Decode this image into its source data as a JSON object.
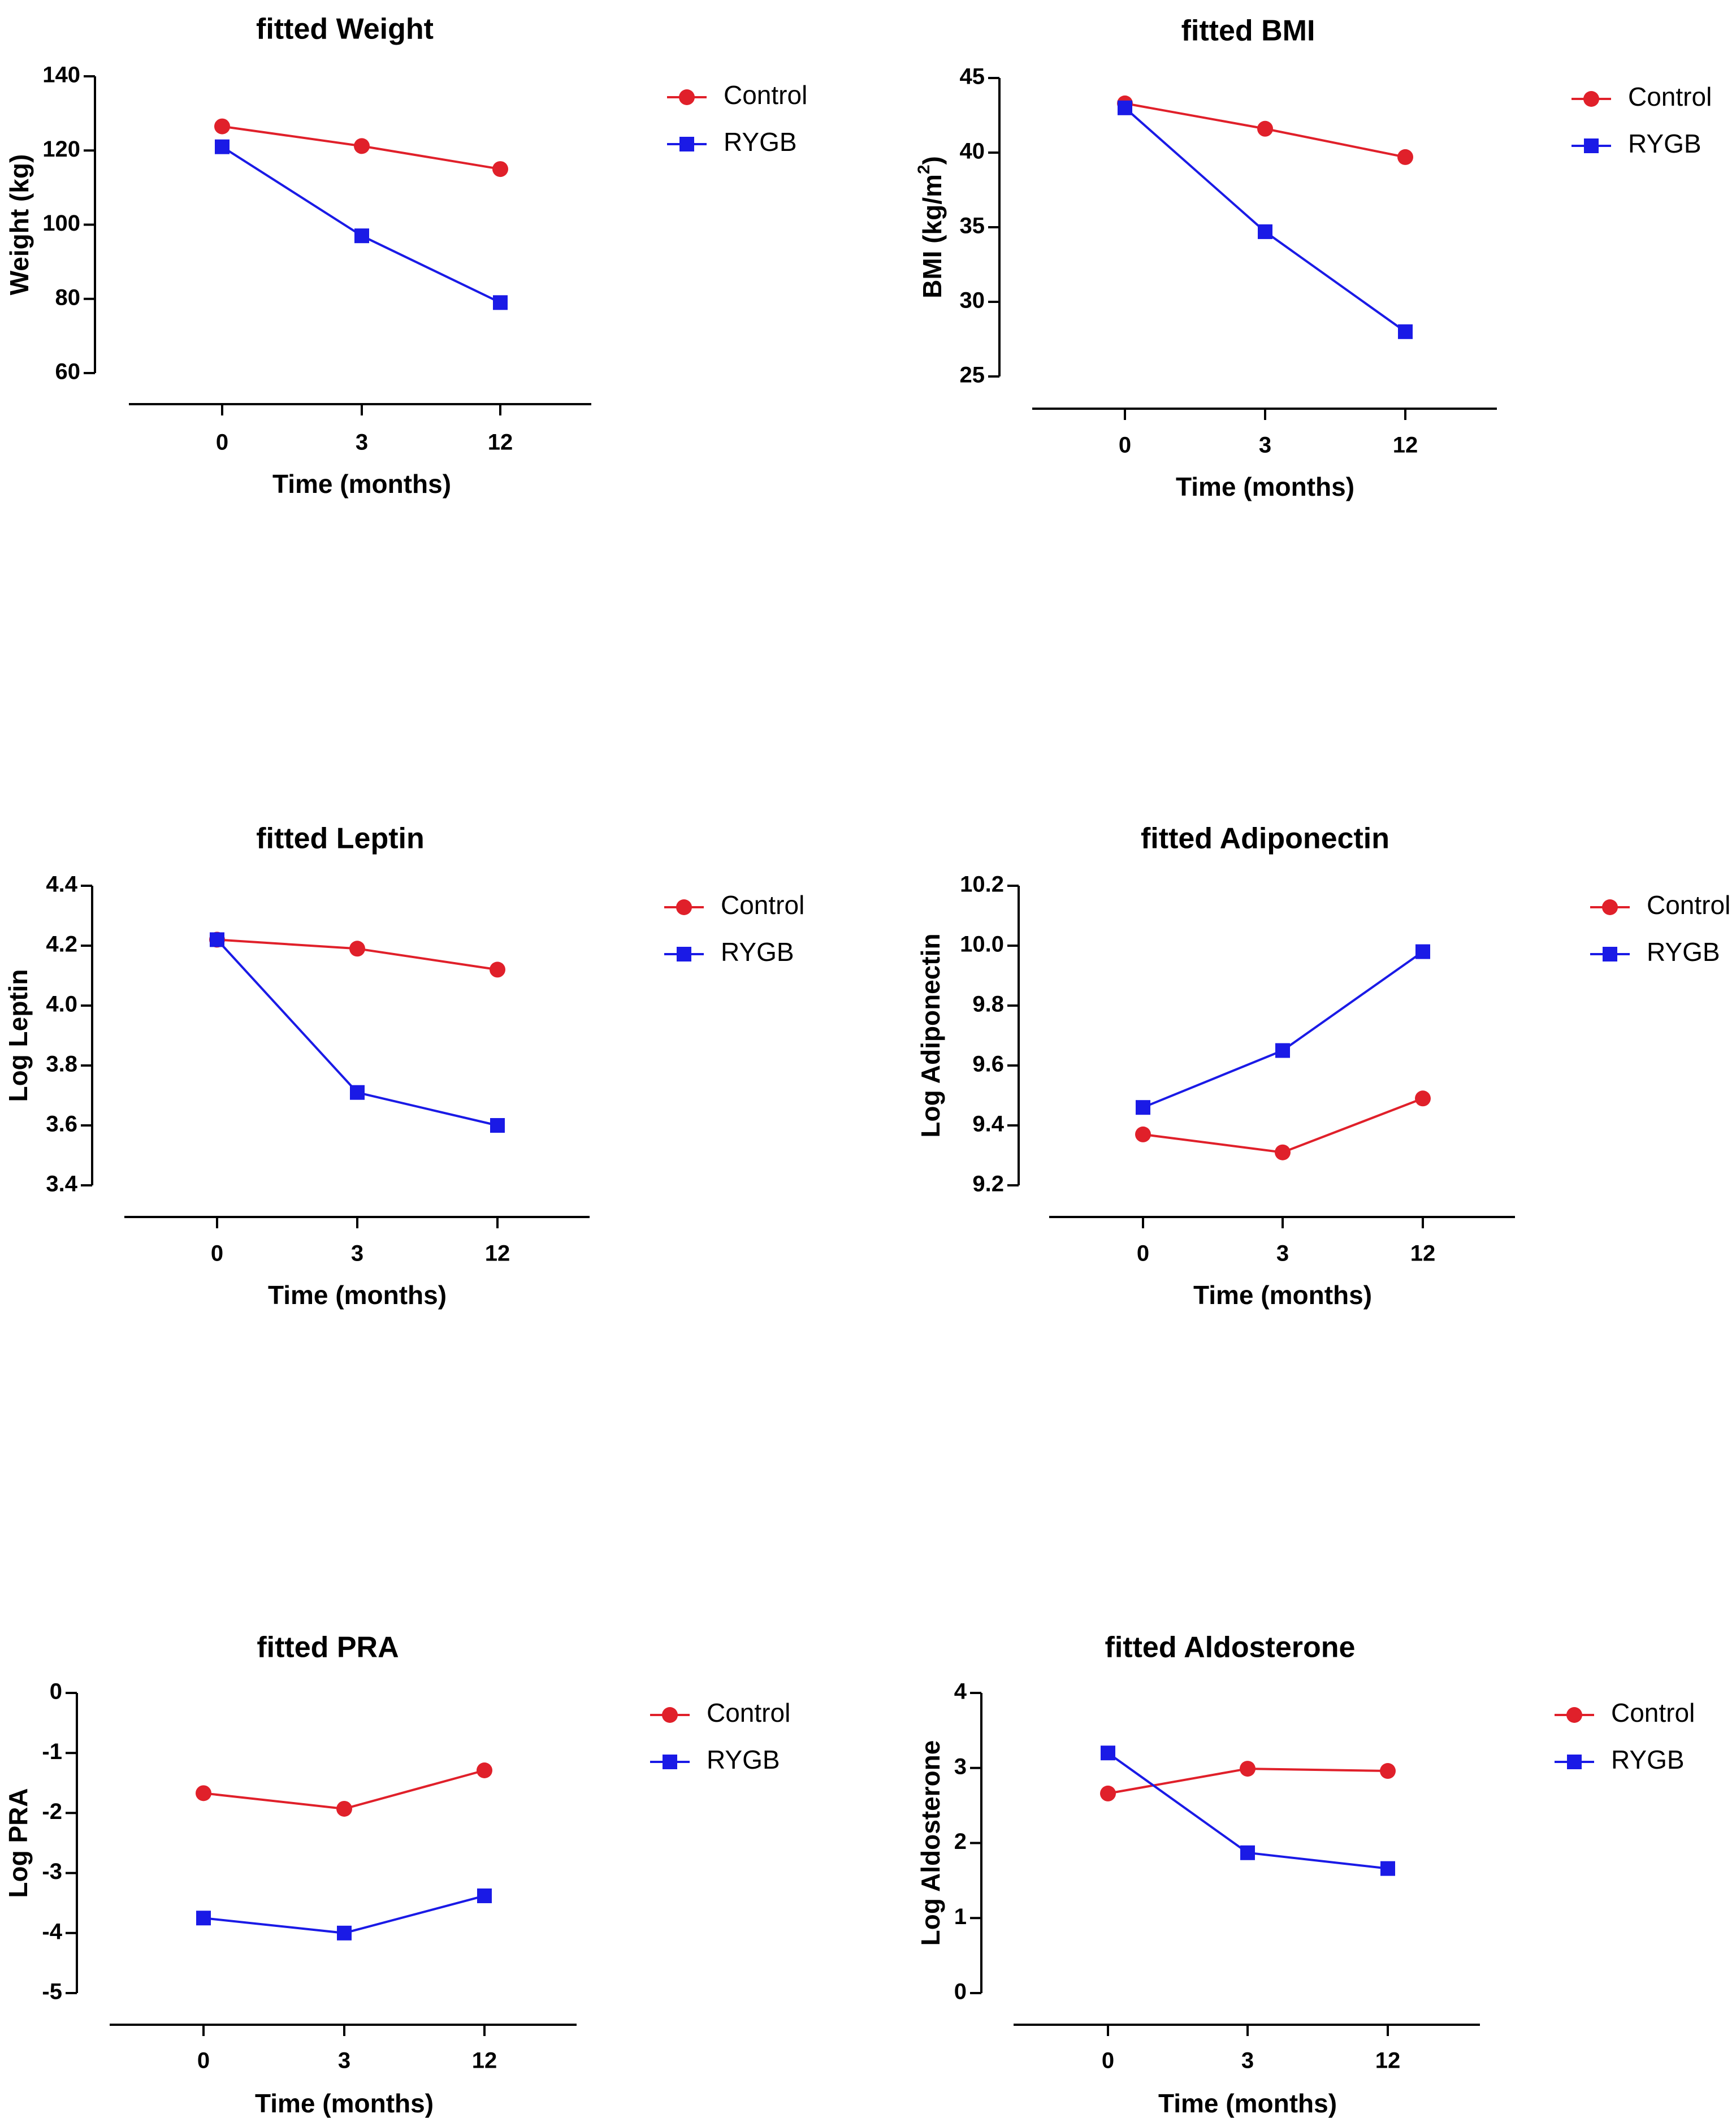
{
  "figure": {
    "colors": {
      "Control": "#e0202a",
      "RYGB": "#1a1ae6"
    },
    "markers": {
      "Control": "circle",
      "RYGB": "square"
    }
  },
  "chart_data": [
    {
      "type": "line",
      "title": "fitted Weight",
      "xlabel": "Time (months)",
      "ylabel": "Weight (kg)",
      "ylabel_sup": "",
      "ylabel_after": "",
      "categories": [
        "0",
        "3",
        "12"
      ],
      "ylim": [
        60,
        140
      ],
      "yticks": [
        60,
        80,
        100,
        120,
        140
      ],
      "yticklabels": [
        "60",
        "80",
        "100",
        "120",
        "140"
      ],
      "series": [
        {
          "name": "Control",
          "values": [
            126.5,
            121.2,
            115.0
          ]
        },
        {
          "name": "RYGB",
          "values": [
            121.0,
            97.0,
            79.0
          ]
        }
      ],
      "legend": [
        "Control",
        "RYGB"
      ]
    },
    {
      "type": "line",
      "title": "fitted BMI",
      "xlabel": "Time (months)",
      "ylabel": "BMI (kg/m",
      "ylabel_sup": "2",
      "ylabel_after": ")",
      "categories": [
        "0",
        "3",
        "12"
      ],
      "ylim": [
        25,
        45
      ],
      "yticks": [
        25,
        30,
        35,
        40,
        45
      ],
      "yticklabels": [
        "25",
        "30",
        "35",
        "40",
        "45"
      ],
      "series": [
        {
          "name": "Control",
          "values": [
            43.3,
            41.6,
            39.7
          ]
        },
        {
          "name": "RYGB",
          "values": [
            43.0,
            34.7,
            28.0
          ]
        }
      ],
      "legend": [
        "Control",
        "RYGB"
      ]
    },
    {
      "type": "line",
      "title": "fitted Leptin",
      "xlabel": "Time (months)",
      "ylabel": "Log Leptin",
      "ylabel_sup": "",
      "ylabel_after": "",
      "categories": [
        "0",
        "3",
        "12"
      ],
      "ylim": [
        3.4,
        4.4
      ],
      "yticks": [
        3.4,
        3.6,
        3.8,
        4.0,
        4.2,
        4.4
      ],
      "yticklabels": [
        "3.4",
        "3.6",
        "3.8",
        "4.0",
        "4.2",
        "4.4"
      ],
      "series": [
        {
          "name": "Control",
          "values": [
            4.22,
            4.19,
            4.12
          ]
        },
        {
          "name": "RYGB",
          "values": [
            4.22,
            3.71,
            3.6
          ]
        }
      ],
      "legend": [
        "Control",
        "RYGB"
      ]
    },
    {
      "type": "line",
      "title": "fitted Adiponectin",
      "xlabel": "Time (months)",
      "ylabel": "Log Adiponectin",
      "ylabel_sup": "",
      "ylabel_after": "",
      "categories": [
        "0",
        "3",
        "12"
      ],
      "ylim": [
        9.2,
        10.2
      ],
      "yticks": [
        9.2,
        9.4,
        9.6,
        9.8,
        10.0,
        10.2
      ],
      "yticklabels": [
        "9.2",
        "9.4",
        "9.6",
        "9.8",
        "10.0",
        "10.2"
      ],
      "series": [
        {
          "name": "Control",
          "values": [
            9.37,
            9.31,
            9.49
          ]
        },
        {
          "name": "RYGB",
          "values": [
            9.46,
            9.65,
            9.98
          ]
        }
      ],
      "legend": [
        "Control",
        "RYGB"
      ]
    },
    {
      "type": "line",
      "title": "fitted PRA",
      "xlabel": "Time (months)",
      "ylabel": "Log PRA",
      "ylabel_sup": "",
      "ylabel_after": "",
      "categories": [
        "0",
        "3",
        "12"
      ],
      "ylim": [
        -5,
        0
      ],
      "yticks": [
        -5,
        -4,
        -3,
        -2,
        -1,
        0
      ],
      "yticklabels": [
        "-5",
        "-4",
        "-3",
        "-2",
        "-1",
        "0"
      ],
      "series": [
        {
          "name": "Control",
          "values": [
            -1.67,
            -1.93,
            -1.29
          ]
        },
        {
          "name": "RYGB",
          "values": [
            -3.75,
            -4.0,
            -3.38
          ]
        }
      ],
      "legend": [
        "Control",
        "RYGB"
      ]
    },
    {
      "type": "line",
      "title": "fitted Aldosterone",
      "xlabel": "Time (months)",
      "ylabel": "Log Aldosterone",
      "ylabel_sup": "",
      "ylabel_after": "",
      "categories": [
        "0",
        "3",
        "12"
      ],
      "ylim": [
        0,
        4
      ],
      "yticks": [
        0,
        1,
        2,
        3,
        4
      ],
      "yticklabels": [
        "0",
        "1",
        "2",
        "3",
        "4"
      ],
      "series": [
        {
          "name": "Control",
          "values": [
            2.66,
            2.99,
            2.96
          ]
        },
        {
          "name": "RYGB",
          "values": [
            3.2,
            1.87,
            1.66
          ]
        }
      ],
      "legend": [
        "Control",
        "RYGB"
      ]
    }
  ]
}
